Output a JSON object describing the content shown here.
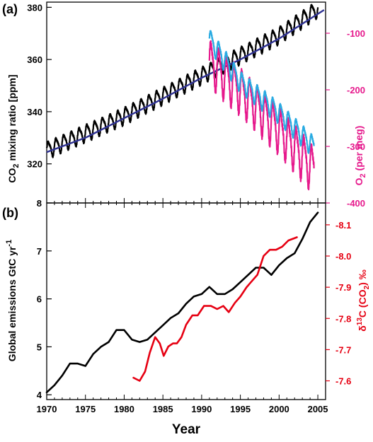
{
  "colors": {
    "co2_series": "#000000",
    "co2_fit": "#2e3192",
    "o2_series": "#e6198c",
    "o2_fit": "#29abe2",
    "emissions": "#000000",
    "d13c": "#e60012",
    "axis": "#000000",
    "o2_axis": "#e6198c",
    "d13c_axis": "#e60012",
    "background": "#ffffff"
  },
  "chart_data": [
    {
      "panel_label": "(a)",
      "type": "line",
      "xlim": [
        1970,
        2006
      ],
      "y_left": {
        "label": "CO",
        "label_sub": "2",
        "label_rest": " mixing ratio [ppm]",
        "ylim": [
          305,
          382
        ],
        "ticks": [
          320,
          340,
          360,
          380
        ]
      },
      "y_right": {
        "label": "O",
        "label_sub": "2",
        "label_rest": " (per meg)",
        "ylim": [
          -400,
          -45
        ],
        "ticks": [
          -100,
          -200,
          -300,
          -400
        ]
      },
      "series": [
        {
          "axis": "left",
          "color_key": "co2_series",
          "style": "seasonal",
          "trend_x": [
            1970,
            1980,
            1990,
            2000,
            2005
          ],
          "trend_y": [
            325.3,
            338.5,
            354.0,
            369.4,
            379.6
          ],
          "amplitude": 3.2
        },
        {
          "axis": "left",
          "color_key": "co2_fit",
          "style": "line",
          "x": [
            1970,
            1975,
            1980,
            1985,
            1990,
            1995,
            2000,
            2005,
            2005.8
          ],
          "y": [
            324.5,
            330.0,
            337.5,
            345.0,
            353.0,
            360.0,
            368.0,
            377.5,
            379.0
          ]
        },
        {
          "axis": "right",
          "color_key": "o2_series",
          "style": "seasonal",
          "trend_x": [
            1991,
            1995,
            2000,
            2004.5
          ],
          "trend_y": [
            -150,
            -200,
            -270,
            -340
          ],
          "amplitude": 40
        },
        {
          "axis": "right",
          "color_key": "o2_fit",
          "style": "seasonal",
          "trend_x": [
            1991,
            1995,
            2000,
            2004.5
          ],
          "trend_y": [
            -110,
            -185,
            -240,
            -300
          ],
          "amplitude": 18
        }
      ]
    },
    {
      "panel_label": "(b)",
      "type": "line",
      "xlim": [
        1970,
        2006
      ],
      "x_ticks": [
        1970,
        1975,
        1980,
        1985,
        1990,
        1995,
        2000,
        2005
      ],
      "xlabel": "Year",
      "y_left": {
        "label": "Global emissions GtC yr",
        "label_sup": "-1",
        "ylim": [
          3.9,
          8.0
        ],
        "ticks": [
          4,
          5,
          6,
          7,
          8
        ]
      },
      "y_right": {
        "label_pre": "δ",
        "label_sup": "13",
        "label_mid": "C (CO",
        "label_sub": "2",
        "label_rest": ") ‰",
        "ylim": [
          -7.54,
          -8.17
        ],
        "ticks": [
          "-7.6",
          "-7.7",
          "-7.8",
          "-7.9",
          "-8.0",
          "-8.1"
        ],
        "tick_values": [
          -7.6,
          -7.7,
          -7.8,
          -7.9,
          -8.0,
          -8.1
        ]
      },
      "series": [
        {
          "axis": "left",
          "color_key": "emissions",
          "style": "line",
          "x": [
            1970,
            1971,
            1972,
            1973,
            1974,
            1975,
            1976,
            1977,
            1978,
            1979,
            1980,
            1981,
            1982,
            1983,
            1984,
            1985,
            1986,
            1987,
            1988,
            1989,
            1990,
            1991,
            1992,
            1993,
            1994,
            1995,
            1996,
            1997,
            1998,
            1999,
            2000,
            2001,
            2002,
            2003,
            2004,
            2005
          ],
          "y": [
            4.05,
            4.2,
            4.4,
            4.65,
            4.65,
            4.6,
            4.85,
            5.0,
            5.1,
            5.35,
            5.35,
            5.15,
            5.1,
            5.15,
            5.3,
            5.45,
            5.6,
            5.7,
            5.9,
            6.05,
            6.1,
            6.25,
            6.1,
            6.1,
            6.2,
            6.35,
            6.5,
            6.65,
            6.65,
            6.5,
            6.7,
            6.85,
            6.95,
            7.25,
            7.6,
            7.8
          ]
        },
        {
          "axis": "right",
          "color_key": "d13c",
          "style": "line",
          "x": [
            1981.2,
            1982,
            1982.7,
            1983.3,
            1984,
            1984.6,
            1985.1,
            1985.7,
            1986.3,
            1986.8,
            1987.4,
            1988,
            1988.8,
            1989.5,
            1990.3,
            1991.2,
            1992,
            1992.8,
            1993.5,
            1994.3,
            1995,
            1995.8,
            1996.5,
            1997.2,
            1998,
            1998.8,
            1999.6,
            2000.4,
            2001.2,
            2002.3
          ],
          "y": [
            -7.61,
            -7.6,
            -7.63,
            -7.69,
            -7.74,
            -7.72,
            -7.68,
            -7.71,
            -7.72,
            -7.72,
            -7.74,
            -7.78,
            -7.81,
            -7.81,
            -7.84,
            -7.84,
            -7.83,
            -7.84,
            -7.82,
            -7.85,
            -7.87,
            -7.9,
            -7.92,
            -7.94,
            -8.0,
            -8.02,
            -8.02,
            -8.03,
            -8.05,
            -8.06
          ]
        }
      ]
    }
  ]
}
